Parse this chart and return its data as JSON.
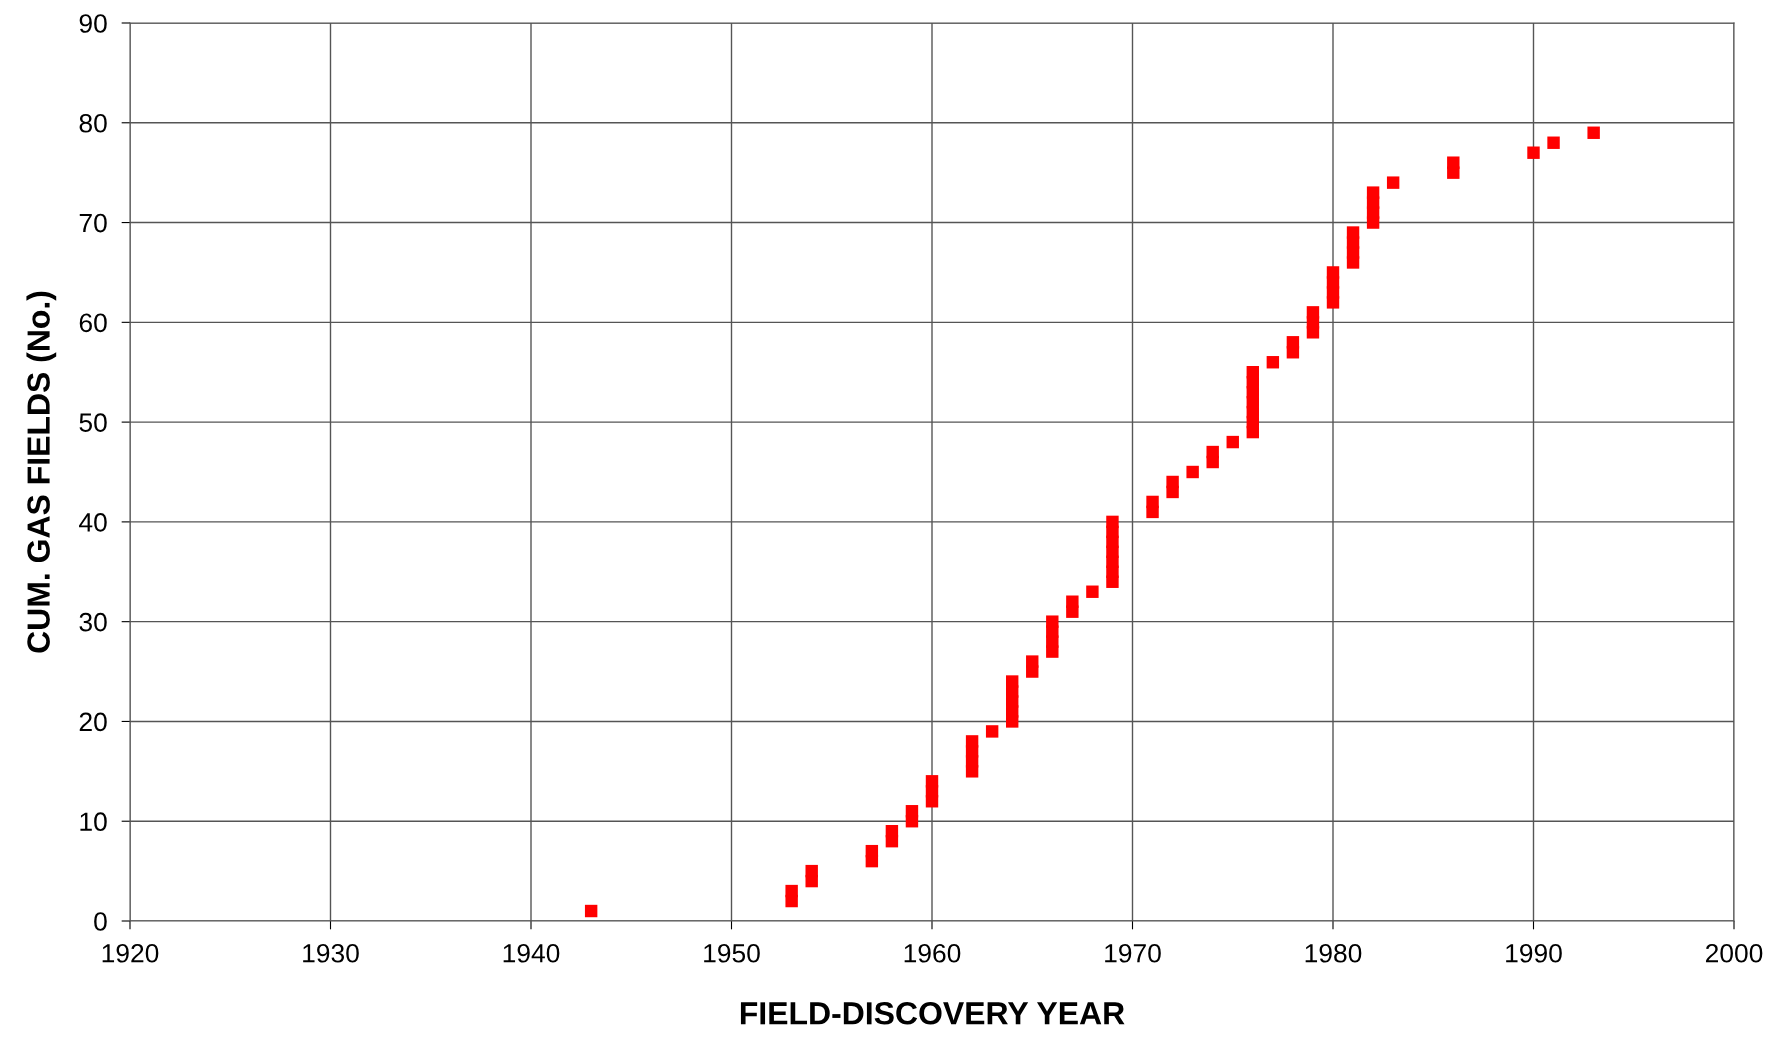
{
  "chart_data": {
    "type": "scatter",
    "xlabel": "FIELD-DISCOVERY YEAR",
    "ylabel": "CUM. GAS FIELDS (No.)",
    "x": [
      1943,
      1953,
      1953,
      1954,
      1954,
      1957,
      1957,
      1958,
      1958,
      1959,
      1959,
      1960,
      1960,
      1960,
      1962,
      1962,
      1962,
      1962,
      1963,
      1964,
      1964,
      1964,
      1964,
      1964,
      1965,
      1965,
      1966,
      1966,
      1966,
      1966,
      1967,
      1967,
      1968,
      1969,
      1969,
      1969,
      1969,
      1969,
      1969,
      1969,
      1971,
      1971,
      1972,
      1972,
      1973,
      1974,
      1974,
      1975,
      1976,
      1976,
      1976,
      1976,
      1976,
      1976,
      1976,
      1977,
      1978,
      1978,
      1979,
      1979,
      1979,
      1980,
      1980,
      1980,
      1980,
      1981,
      1981,
      1981,
      1981,
      1982,
      1982,
      1982,
      1982,
      1983,
      1986,
      1986,
      1990,
      1991,
      1993
    ],
    "values": [
      1,
      2,
      3,
      4,
      5,
      6,
      7,
      8,
      9,
      10,
      11,
      12,
      13,
      14,
      15,
      16,
      17,
      18,
      19,
      20,
      21,
      22,
      23,
      24,
      25,
      26,
      27,
      28,
      29,
      30,
      31,
      32,
      33,
      34,
      35,
      36,
      37,
      38,
      39,
      40,
      41,
      42,
      43,
      44,
      45,
      46,
      47,
      48,
      49,
      50,
      51,
      52,
      53,
      54,
      55,
      56,
      57,
      58,
      59,
      60,
      61,
      62,
      63,
      64,
      65,
      66,
      67,
      68,
      69,
      70,
      71,
      72,
      73,
      74,
      75,
      76,
      77,
      78,
      79
    ],
    "color": "#ff0000",
    "marker": "square",
    "xlim": [
      1920,
      2000
    ],
    "xticks": [
      1920,
      1930,
      1940,
      1950,
      1960,
      1970,
      1980,
      1990,
      2000
    ],
    "ylim": [
      0,
      90
    ],
    "yticks": [
      0,
      10,
      20,
      30,
      40,
      50,
      60,
      70,
      80,
      90
    ],
    "grid": true
  }
}
